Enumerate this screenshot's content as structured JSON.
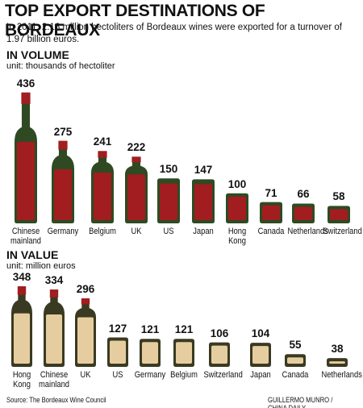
{
  "title": "TOP EXPORT DESTINATIONS OF BORDEAUX",
  "subtitle": "In 2011, 2.16 million hectoliters of Bordeaux wines were exported for a turnover of 1.97 billion euros.",
  "source": "Source: The Bordeaux Wine Council",
  "credit": "GUILLERMO MUNRO / CHINA DAILY",
  "chart_data": [
    {
      "type": "bottle-bar",
      "title": "IN VOLUME",
      "subtitle": "unit: thousands of hectoliter",
      "categories": [
        "Chinese mainland",
        "Germany",
        "Belgium",
        "UK",
        "US",
        "Japan",
        "Hong Kong",
        "Canada",
        "Netherlands",
        "Switzerland"
      ],
      "values": [
        436,
        275,
        241,
        222,
        150,
        147,
        100,
        71,
        66,
        58
      ],
      "color": "#a11d1f"
    },
    {
      "type": "bottle-bar",
      "title": "IN VALUE",
      "subtitle": "unit: million euros",
      "categories": [
        "Hong Kong",
        "Chinese mainland",
        "UK",
        "US",
        "Germany",
        "Belgium",
        "Switzerland",
        "Japan",
        "Canada",
        "Netherlands"
      ],
      "values": [
        348,
        334,
        296,
        127,
        121,
        121,
        106,
        104,
        55,
        38
      ],
      "color": "#e6cda0"
    }
  ]
}
